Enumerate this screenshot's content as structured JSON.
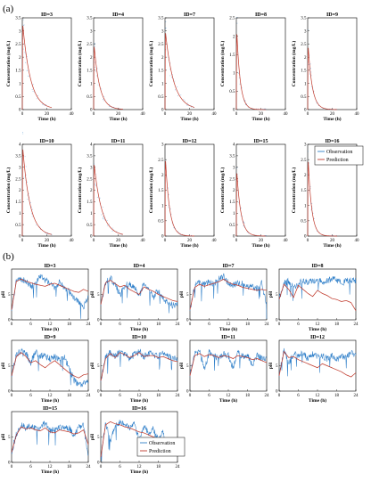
{
  "figure": {
    "panel_a_label": "(a)",
    "panel_b_label": "(b)",
    "colors": {
      "observation": "#2f7fc9",
      "prediction": "#c0392b",
      "axis": "#000000"
    }
  },
  "chart_data": [
    {
      "type": "line",
      "panel": "a",
      "xlabel": "Time (h)",
      "ylabel": "Concentration (mg/L)",
      "xlim": [
        0,
        40
      ],
      "legend": {
        "placement": "top-right",
        "entries": [
          "Observation",
          "Prediction"
        ]
      },
      "x_ticks": [
        0,
        20,
        40
      ],
      "subplots": [
        {
          "title": "ID=3",
          "ylim": [
            0,
            3.5
          ],
          "y_ticks": [
            0,
            0.5,
            1,
            1.5,
            2,
            2.5,
            3,
            3.5
          ],
          "peak": 3.3,
          "decay": 0.16
        },
        {
          "title": "ID=4",
          "ylim": [
            0,
            3.5
          ],
          "y_ticks": [
            0,
            0.5,
            1,
            1.5,
            2,
            2.5,
            3,
            3.5
          ],
          "peak": 2.5,
          "decay": 0.22
        },
        {
          "title": "ID=7",
          "ylim": [
            0,
            3.5
          ],
          "y_ticks": [
            0,
            0.5,
            1,
            1.5,
            2,
            2.5,
            3,
            3.5
          ],
          "peak": 3.0,
          "decay": 0.15
        },
        {
          "title": "ID=8",
          "ylim": [
            0,
            2.5
          ],
          "y_ticks": [
            0,
            0.5,
            1,
            1.5,
            2,
            2.5
          ],
          "peak": 2.2,
          "decay": 0.35
        },
        {
          "title": "ID=9",
          "ylim": [
            0,
            3.5
          ],
          "y_ticks": [
            0,
            0.5,
            1,
            1.5,
            2,
            2.5,
            3,
            3.5
          ],
          "peak": 2.5,
          "decay": 0.3
        },
        {
          "title": "ID=10",
          "ylim": [
            0,
            4
          ],
          "y_ticks": [
            0,
            0.5,
            1,
            1.5,
            2,
            2.5,
            3,
            3.5,
            4
          ],
          "peak": 3.9,
          "decay": 0.17
        },
        {
          "title": "ID=11",
          "ylim": [
            0,
            4
          ],
          "y_ticks": [
            0,
            0.5,
            1,
            1.5,
            2,
            2.5,
            3,
            3.5,
            4
          ],
          "peak": 3.2,
          "decay": 0.16
        },
        {
          "title": "ID=12",
          "ylim": [
            0,
            3
          ],
          "y_ticks": [
            0,
            0.5,
            1,
            1.5,
            2,
            2.5,
            3
          ],
          "peak": 2.6,
          "decay": 0.3
        },
        {
          "title": "ID=15",
          "ylim": [
            0,
            4
          ],
          "y_ticks": [
            0,
            0.5,
            1,
            1.5,
            2,
            2.5,
            3,
            3.5,
            4
          ],
          "peak": 2.9,
          "decay": 0.3
        },
        {
          "title": "ID=16",
          "ylim": [
            0,
            3
          ],
          "y_ticks": [
            0,
            0.5,
            1,
            1.5,
            2,
            2.5,
            3
          ],
          "peak": 2.6,
          "decay": 0.35
        }
      ]
    },
    {
      "type": "line",
      "panel": "b",
      "xlabel": "Time (h)",
      "ylabel": "pH",
      "xlim": [
        0,
        24
      ],
      "legend": {
        "placement": "bottom-right",
        "entries": [
          "Observation",
          "Prediction"
        ]
      },
      "x_ticks": [
        0,
        6,
        12,
        18,
        24
      ],
      "subplots": [
        {
          "title": "ID=3",
          "ylim": [
            0,
            10
          ],
          "y_ticks": [
            0,
            5
          ],
          "obs": [
            2,
            7.8,
            8,
            7.6,
            6.5,
            7.2,
            8.6,
            7.8,
            7.4,
            6.2,
            7.6,
            6.0,
            5.5,
            4.5,
            3.6,
            2.5,
            4.5
          ],
          "pred": [
            2,
            7.6,
            8,
            7.6,
            7.3,
            7.0,
            6.8,
            6.6,
            7.0,
            7.2,
            6.8,
            6.4,
            6.0,
            5.6,
            5.4,
            6.0,
            5.6
          ]
        },
        {
          "title": "ID=4",
          "ylim": [
            0,
            10
          ],
          "y_ticks": [
            0,
            5
          ],
          "obs": [
            3,
            7.4,
            8.2,
            7.0,
            4.8,
            6.8,
            7.2,
            6.4,
            4.5,
            7.2,
            5.8,
            4.5,
            5.8,
            4.2,
            3.5,
            2.8,
            3.2
          ],
          "pred": [
            3,
            7.3,
            7.8,
            7.1,
            6.5,
            6.8,
            6.0,
            5.5,
            5.0,
            6.5,
            6.0,
            5.6,
            5.0,
            4.6,
            4.2,
            3.8,
            3.6
          ]
        },
        {
          "title": "ID=7",
          "ylim": [
            0,
            10
          ],
          "y_ticks": [
            0,
            5
          ],
          "obs": [
            2,
            6.8,
            7.2,
            6.8,
            7.5,
            7.0,
            8.0,
            8.6,
            7.2,
            6.8,
            7.4,
            7.2,
            6.4,
            6.6,
            6.2,
            7.2,
            2.5
          ],
          "pred": [
            2,
            6.4,
            7.0,
            6.6,
            6.9,
            7.2,
            7.5,
            8.0,
            7.4,
            7.0,
            6.8,
            6.4,
            6.2,
            6.0,
            5.8,
            6.0,
            5.8
          ]
        },
        {
          "title": "ID=8",
          "ylim": [
            0,
            10
          ],
          "y_ticks": [
            0,
            5
          ],
          "obs": [
            4,
            7.2,
            7.6,
            6.4,
            7.0,
            7.8,
            7.4,
            7.8,
            7.8,
            7.4,
            7.8,
            8.0,
            7.8,
            7.2,
            7.6,
            7.8,
            7.6
          ],
          "pred": [
            4,
            7.0,
            6.0,
            4.4,
            6.8,
            6.0,
            5.2,
            4.6,
            5.8,
            5.2,
            4.8,
            4.2,
            4.0,
            3.6,
            3.8,
            3.4,
            1.8
          ]
        },
        {
          "title": "ID=9",
          "ylim": [
            0,
            10
          ],
          "y_ticks": [
            0,
            5
          ],
          "obs": [
            3,
            7.2,
            8.0,
            7.4,
            5.6,
            7.8,
            6.8,
            7.0,
            6.4,
            6.8,
            6.2,
            6.8,
            4.6,
            2.2,
            1.0,
            1.5,
            2.0
          ],
          "pred": [
            3,
            6.8,
            7.6,
            6.8,
            5.6,
            6.0,
            5.2,
            4.6,
            5.4,
            6.0,
            5.2,
            4.4,
            3.6,
            3.0,
            2.6,
            3.2,
            3.4
          ]
        },
        {
          "title": "ID=10",
          "ylim": [
            0,
            10
          ],
          "y_ticks": [
            0,
            5
          ],
          "obs": [
            2,
            6.6,
            7.6,
            6.8,
            7.8,
            7.2,
            6.4,
            7.2,
            7.8,
            6.8,
            7.4,
            7.2,
            6.8,
            7.6,
            6.8,
            6.4,
            6.2
          ],
          "pred": [
            2,
            6.4,
            7.4,
            6.6,
            7.6,
            7.2,
            6.6,
            7.0,
            7.6,
            6.8,
            7.0,
            7.0,
            6.6,
            6.8,
            6.4,
            6.0,
            5.8
          ]
        },
        {
          "title": "ID=11",
          "ylim": [
            0,
            10
          ],
          "y_ticks": [
            0,
            5
          ],
          "obs": [
            3,
            7.2,
            7.8,
            4.4,
            7.6,
            7.0,
            6.6,
            7.4,
            7.0,
            4.6,
            7.6,
            6.8,
            7.0,
            5.2,
            7.0,
            6.4,
            6.2
          ],
          "pred": [
            3,
            7.0,
            7.4,
            6.8,
            7.2,
            7.0,
            6.6,
            7.0,
            6.8,
            6.4,
            7.0,
            6.8,
            6.6,
            6.2,
            6.4,
            6.0,
            5.6
          ]
        },
        {
          "title": "ID=12",
          "ylim": [
            0,
            10
          ],
          "y_ticks": [
            0,
            5
          ],
          "obs": [
            3,
            8.0,
            5.4,
            7.4,
            7.0,
            7.6,
            6.2,
            7.4,
            6.8,
            7.0,
            6.4,
            7.0,
            6.2,
            6.8,
            6.6,
            7.6,
            7.2
          ],
          "pred": [
            3,
            7.8,
            6.6,
            6.8,
            6.2,
            5.8,
            5.4,
            5.0,
            4.6,
            5.4,
            5.0,
            4.6,
            4.2,
            3.8,
            3.2,
            2.8,
            3.6
          ]
        },
        {
          "title": "ID=15",
          "ylim": [
            0,
            10
          ],
          "y_ticks": [
            0,
            5
          ],
          "obs": [
            2,
            5.6,
            7.4,
            6.8,
            7.2,
            6.6,
            6.8,
            7.8,
            6.4,
            6.2,
            7.0,
            6.6,
            6.8,
            5.4,
            6.8,
            7.2,
            1.5
          ],
          "pred": [
            2,
            5.4,
            7.0,
            6.6,
            6.8,
            6.4,
            6.2,
            6.8,
            6.0,
            5.8,
            6.4,
            6.2,
            6.0,
            5.6,
            5.8,
            6.4,
            3.5
          ]
        },
        {
          "title": "ID=16",
          "ylim": [
            0,
            10
          ],
          "y_ticks": [
            0,
            5
          ],
          "obs": [
            1,
            7.8,
            4.4,
            7.2,
            8.0,
            7.8,
            6.6,
            7.6,
            4.4,
            7.2,
            5.8,
            6.6,
            4.2,
            6.0,
            3.2,
            2.0,
            2.4
          ],
          "pred": [
            1,
            7.4,
            8.0,
            7.6,
            7.4,
            7.0,
            6.8,
            6.4,
            6.0,
            5.8,
            5.4,
            5.0,
            4.6,
            4.2,
            3.8,
            3.8,
            4.4
          ]
        }
      ]
    }
  ]
}
